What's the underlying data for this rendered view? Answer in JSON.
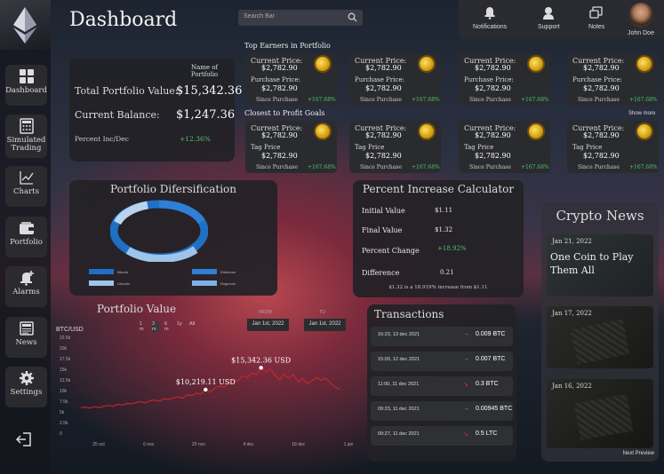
{
  "header": {
    "title": "Dashboard",
    "search_placeholder": "Search Bar",
    "top_items": [
      {
        "label": "Notifications",
        "icon": "bell-icon"
      },
      {
        "label": "Support",
        "icon": "headset-icon"
      },
      {
        "label": "Notes",
        "icon": "notes-icon"
      }
    ],
    "user_name": "John Doe"
  },
  "sidebar": {
    "items": [
      {
        "label": "Dashboard",
        "icon": "grid-icon"
      },
      {
        "label": "Simulated Trading",
        "icon": "calculator-icon"
      },
      {
        "label": "Charts",
        "icon": "line-chart-icon"
      },
      {
        "label": "Portfolio",
        "icon": "wallet-icon"
      },
      {
        "label": "Alarms",
        "icon": "bell-plus-icon"
      },
      {
        "label": "News",
        "icon": "newspaper-icon"
      },
      {
        "label": "Settings",
        "icon": "gear-icon"
      }
    ],
    "logout_icon": "logout-icon"
  },
  "summary": {
    "name_label": "Name of Portfolio",
    "total_label": "Total Portfolio Value:",
    "total_value": "$15,342.36",
    "balance_label": "Current Balance:",
    "balance_value": "$1,247.36",
    "pct_label": "Percent Inc/Dec",
    "pct_value": "+12.36%"
  },
  "top_earners": {
    "heading": "Top Earners in Portfolio",
    "cards": [
      {
        "label1": "Current Price:",
        "price": "$2,782.90",
        "label2": "Purchase Price:",
        "pval": "$2,782.90",
        "since": "Since Purchase",
        "pct": "+167.68%"
      },
      {
        "label1": "Current Price:",
        "price": "$2,782.90",
        "label2": "Purchase Price:",
        "pval": "$2,782.90",
        "since": "Since Purchase",
        "pct": "+167.68%"
      },
      {
        "label1": "Current Price:",
        "price": "$2,782.90",
        "label2": "Purchase Price:",
        "pval": "$2,782.90",
        "since": "Since Purchase",
        "pct": "+167.68%"
      },
      {
        "label1": "Current Price:",
        "price": "$2,782.90",
        "label2": "Purchase Price:",
        "pval": "$2,782.90",
        "since": "Since Purchase",
        "pct": "+167.68%"
      }
    ]
  },
  "closest_goals": {
    "heading": "Closest to Profit Goals",
    "show_more": "Show more",
    "cards": [
      {
        "label1": "Current Price:",
        "price": "$2,782.90",
        "label2": "Tag Price",
        "pval": "$2,782.90",
        "since": "Since Purchase",
        "pct": "+167.68%"
      },
      {
        "label1": "Current Price:",
        "price": "$2,782.90",
        "label2": "Tag Price",
        "pval": "$2,782.90",
        "since": "Since Purchase",
        "pct": "+167.68%"
      },
      {
        "label1": "Current Price:",
        "price": "$2,782.90",
        "label2": "Tag Price",
        "pval": "$2,782.90",
        "since": "Since Purchase",
        "pct": "+167.68%"
      },
      {
        "label1": "Current Price:",
        "price": "$2,782.90",
        "label2": "Tag Price",
        "pval": "$2,782.90",
        "since": "Since Purchase",
        "pct": "+167.68%"
      }
    ]
  },
  "diversification": {
    "title": "Portfolio Difersification",
    "legend": [
      "Bitcoin",
      "Litecoin",
      "Ethereum",
      "Dogecoin"
    ],
    "legend_colors": [
      "#1f6fc4",
      "#9ec4ea",
      "#2f7fd6",
      "#7fb0e6"
    ]
  },
  "calculator": {
    "title": "Percent Increase Calculator",
    "rows": [
      {
        "label": "Initial Value",
        "value": "$1.11"
      },
      {
        "label": "Final Value",
        "value": "$1.32"
      },
      {
        "label": "Percent Change",
        "value": "+18.92%"
      },
      {
        "label": "Difference",
        "value": "0.21"
      }
    ],
    "footer": "$1.32 is a 18.919% increase from $1.11"
  },
  "news": {
    "title": "Crypto News",
    "items": [
      {
        "date": "Jan 21, 2022",
        "headline": "One Coin to Play Them All"
      },
      {
        "date": "Jan 17, 2022",
        "headline": ""
      },
      {
        "date": "Jan 16, 2022",
        "headline": ""
      }
    ],
    "next": "Next Preview"
  },
  "transactions": {
    "title": "Transactions",
    "rows": [
      {
        "time": "16:23, 13 dec 2021",
        "amount": "0.009 BTC",
        "direction": "up"
      },
      {
        "time": "15:00, 12 dec 2021",
        "amount": "0.007 BTC",
        "direction": "up"
      },
      {
        "time": "11:00, 11 dec 2021",
        "amount": "0.3 BTC",
        "direction": "down"
      },
      {
        "time": "09:23, 11 dec 2021",
        "amount": "0.00945 BTC",
        "direction": "up"
      },
      {
        "time": "09:27, 11 dec 2021",
        "amount": "0.5 LTC",
        "direction": "down"
      }
    ]
  },
  "portfolio_value": {
    "title": "Portfolio Value",
    "pair": "BTC/USD",
    "ranges": [
      "1 m",
      "3 m",
      "6 m",
      "1y",
      "All"
    ],
    "selected_range": "3 m",
    "from_label": "FROM",
    "from_value": "Jan 1st, 2022",
    "to_label": "TO",
    "to_value": "Jan 1st, 2022",
    "colors": {
      "line": "#c0282b"
    }
  },
  "chart_data": {
    "type": "line",
    "ylabel": "",
    "y_ticks": [
      "0",
      "2.5k",
      "5k",
      "7.5k",
      "10k",
      "12.5k",
      "15k",
      "17.5k",
      "20k",
      "22.5k"
    ],
    "x_ticks": [
      "25 oct",
      "6 nov",
      "20 nov",
      "4 dec",
      "18 dec",
      "1 jan"
    ],
    "ylim": [
      0,
      22500
    ],
    "annotations": [
      {
        "label": "$15,342.36 USD",
        "x": 16.0,
        "y": 15342.36
      },
      {
        "label": "$10,219.11 USD",
        "x": 11.4,
        "y": 10219.11
      }
    ],
    "series": [
      {
        "values": [
          6000,
          6100,
          5900,
          6200,
          6000,
          6300,
          6500,
          6300,
          6800,
          6600,
          7000,
          6900,
          7200,
          7400,
          7100,
          7600,
          7800,
          7500,
          8100,
          7900,
          8300,
          8500,
          8200,
          9000,
          8800,
          9400,
          9200,
          10219,
          9600,
          10600,
          11100,
          10800,
          11800,
          12600,
          12200,
          13500,
          13000,
          14200,
          13700,
          15342,
          14400,
          15100,
          13600,
          12500,
          13900,
          12900,
          13700,
          12000,
          12800,
          11600,
          12300,
          13100,
          12400,
          12900,
          11800,
          10900,
          10200
        ]
      }
    ]
  }
}
